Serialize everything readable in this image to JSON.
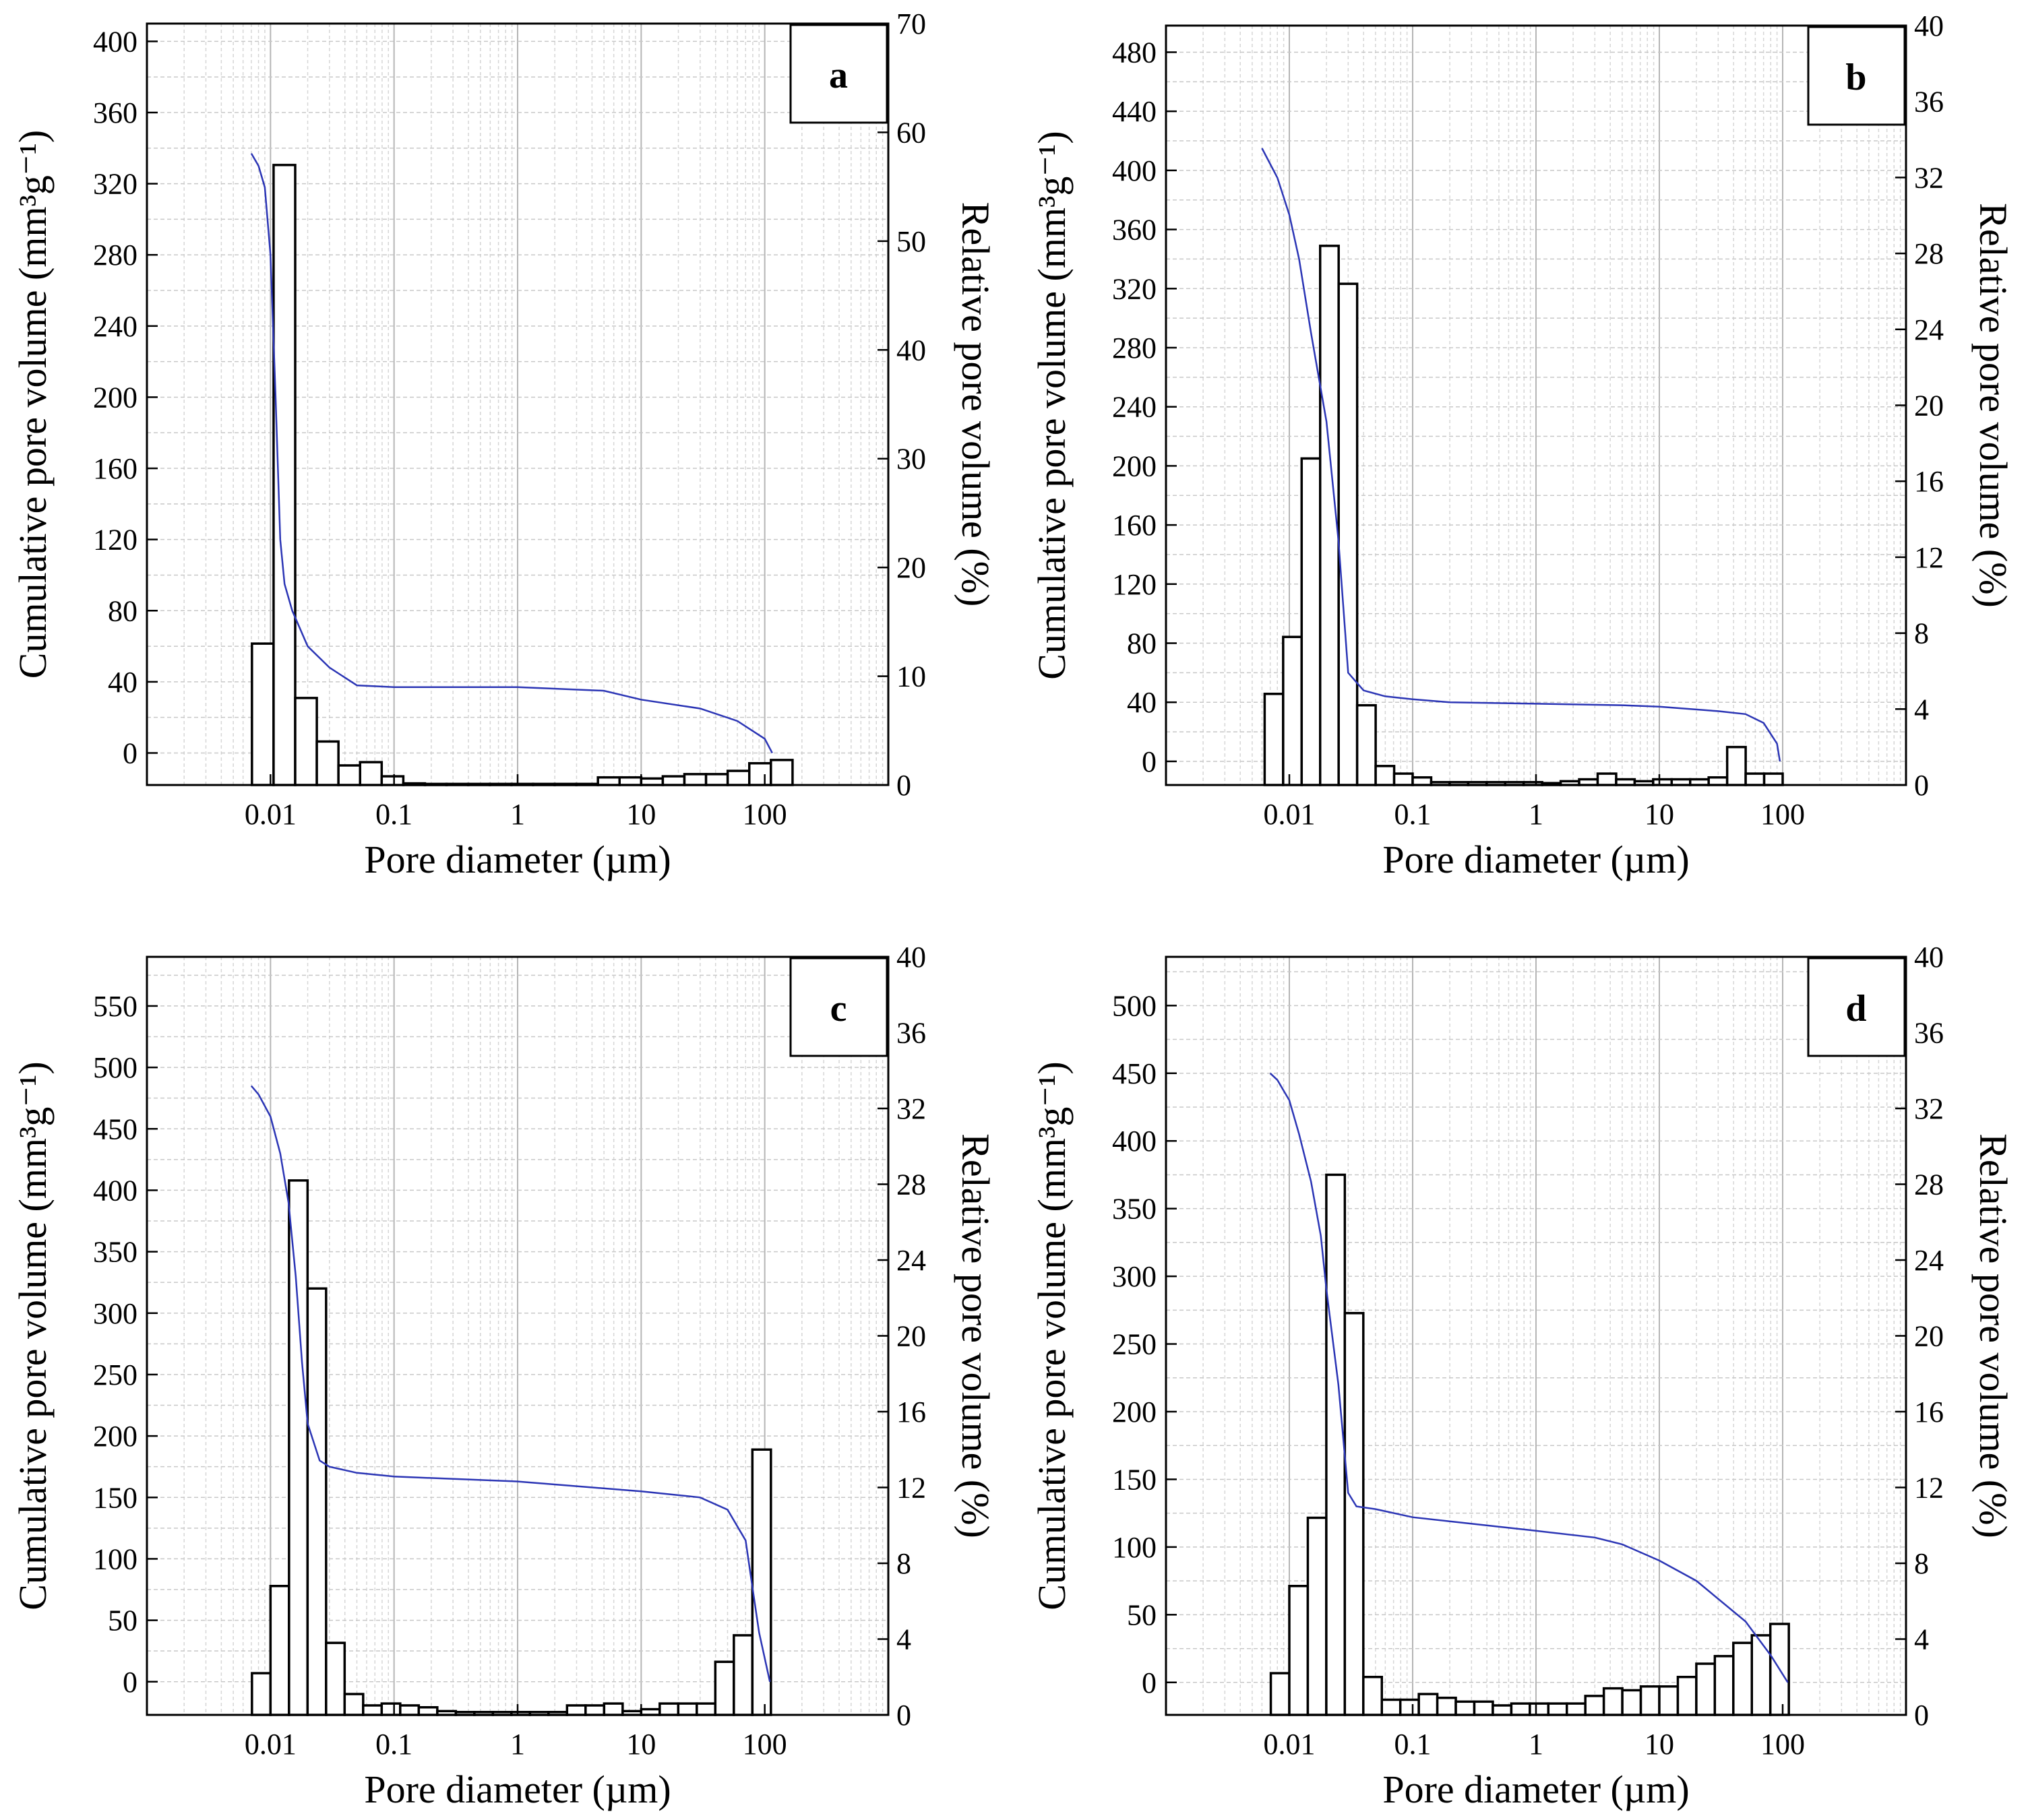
{
  "figure": {
    "panels": [
      "a",
      "b",
      "c",
      "d"
    ]
  },
  "chart_data": [
    {
      "type": "bar",
      "panel": "a",
      "xlabel": "Pore diameter (µm)",
      "ylabel": "Cumulative pore volume (mm³g⁻¹)",
      "y2label": "Relative pore volume (%)",
      "x_scale": "log",
      "xlim": [
        0.001,
        1000
      ],
      "xticks": [
        0.01,
        0.1,
        1,
        10,
        100
      ],
      "xtick_labels": [
        "0.01",
        "0.1",
        "1",
        "10",
        "100"
      ],
      "ylim": [
        -18,
        410
      ],
      "yticks": [
        0,
        40,
        80,
        120,
        160,
        200,
        240,
        280,
        320,
        360,
        400
      ],
      "y2lim": [
        0,
        70
      ],
      "y2ticks": [
        0,
        10,
        20,
        30,
        40,
        50,
        60,
        70
      ],
      "grid": true,
      "bins_log10": [
        -2.15,
        -1.975,
        -1.8,
        -1.625,
        -1.45,
        -1.275,
        -1.1,
        -0.925,
        -0.75,
        -0.575,
        -0.4,
        -0.225,
        -0.05,
        0.125,
        0.3,
        0.475,
        0.65,
        0.825,
        1.0,
        1.175,
        1.35,
        1.525,
        1.7,
        1.875,
        2.05
      ],
      "relative_pore_volume": [
        13.0,
        57.0,
        8.0,
        4.0,
        1.8,
        2.1,
        0.8,
        0.15,
        0.1,
        0.1,
        0.1,
        0.1,
        0.1,
        0.1,
        0.1,
        0.1,
        0.7,
        0.7,
        0.6,
        0.8,
        1.0,
        1.0,
        1.3,
        2.0,
        2.3
      ],
      "cumulative_curve": {
        "x": [
          0.007,
          0.008,
          0.009,
          0.01,
          0.011,
          0.012,
          0.013,
          0.015,
          0.02,
          0.03,
          0.05,
          0.1,
          1,
          5,
          10,
          30,
          60,
          100,
          115
        ],
        "y": [
          337,
          330,
          318,
          280,
          200,
          120,
          95,
          80,
          60,
          48,
          38,
          37,
          37,
          35,
          30,
          25,
          18,
          8,
          0
        ]
      }
    },
    {
      "type": "bar",
      "panel": "b",
      "xlabel": "Pore diameter (µm)",
      "ylabel": "Cumulative pore volume (mm³g⁻¹)",
      "y2label": "Relative pore volume (%)",
      "x_scale": "log",
      "xlim": [
        0.001,
        1000
      ],
      "xticks": [
        0.01,
        0.1,
        1,
        10,
        100
      ],
      "xtick_labels": [
        "0.01",
        "0.1",
        "1",
        "10",
        "100"
      ],
      "ylim": [
        -16,
        498
      ],
      "yticks": [
        0,
        40,
        80,
        120,
        160,
        200,
        240,
        280,
        320,
        360,
        400,
        440,
        480
      ],
      "y2lim": [
        0,
        40
      ],
      "y2ticks": [
        0,
        4,
        8,
        12,
        16,
        20,
        24,
        28,
        32,
        36,
        40
      ],
      "grid": true,
      "bins_log10": [
        -2.2,
        -2.05,
        -1.9,
        -1.75,
        -1.6,
        -1.45,
        -1.3,
        -1.15,
        -1.0,
        -0.85,
        -0.7,
        -0.55,
        -0.4,
        -0.25,
        -0.1,
        0.05,
        0.2,
        0.35,
        0.5,
        0.65,
        0.8,
        0.95,
        1.1,
        1.25,
        1.4,
        1.55,
        1.7,
        1.85
      ],
      "relative_pore_volume": [
        4.8,
        7.8,
        17.2,
        28.4,
        26.4,
        4.2,
        1.0,
        0.6,
        0.4,
        0.15,
        0.15,
        0.15,
        0.15,
        0.15,
        0.15,
        0.1,
        0.2,
        0.3,
        0.6,
        0.3,
        0.2,
        0.3,
        0.3,
        0.3,
        0.4,
        2.0,
        0.6,
        0.6
      ],
      "cumulative_curve": {
        "x": [
          0.006,
          0.008,
          0.01,
          0.012,
          0.015,
          0.02,
          0.025,
          0.03,
          0.04,
          0.06,
          0.1,
          0.2,
          1,
          5,
          10,
          30,
          50,
          70,
          90,
          95
        ],
        "y": [
          415,
          395,
          370,
          340,
          290,
          230,
          150,
          60,
          48,
          44,
          42,
          40,
          39,
          38,
          37,
          34,
          32,
          26,
          12,
          0
        ]
      }
    },
    {
      "type": "bar",
      "panel": "c",
      "xlabel": "Pore diameter (µm)",
      "ylabel": "Cumulative pore volume (mm³g⁻¹)",
      "y2label": "Relative pore volume (%)",
      "x_scale": "log",
      "xlim": [
        0.001,
        1000
      ],
      "xticks": [
        0.01,
        0.1,
        1,
        10,
        100
      ],
      "xtick_labels": [
        "0.01",
        "0.1",
        "1",
        "10",
        "100"
      ],
      "ylim": [
        -27,
        590
      ],
      "yticks": [
        0,
        50,
        100,
        150,
        200,
        250,
        300,
        350,
        400,
        450,
        500,
        550
      ],
      "y2lim": [
        0,
        40
      ],
      "y2ticks": [
        0,
        4,
        8,
        12,
        16,
        20,
        24,
        28,
        32,
        36,
        40
      ],
      "grid": true,
      "bins_log10": [
        -2.15,
        -2.0,
        -1.85,
        -1.7,
        -1.55,
        -1.4,
        -1.25,
        -1.1,
        -0.95,
        -0.8,
        -0.65,
        -0.5,
        -0.35,
        -0.2,
        -0.05,
        0.1,
        0.25,
        0.4,
        0.55,
        0.7,
        0.85,
        1.0,
        1.15,
        1.3,
        1.45,
        1.6,
        1.75,
        1.9
      ],
      "relative_pore_volume": [
        2.2,
        6.8,
        28.2,
        22.5,
        3.8,
        1.1,
        0.5,
        0.6,
        0.5,
        0.4,
        0.2,
        0.15,
        0.15,
        0.15,
        0.15,
        0.15,
        0.15,
        0.5,
        0.5,
        0.6,
        0.2,
        0.3,
        0.6,
        0.6,
        0.6,
        2.8,
        4.2,
        14.0
      ],
      "cumulative_curve": {
        "x": [
          0.007,
          0.008,
          0.01,
          0.012,
          0.014,
          0.016,
          0.018,
          0.02,
          0.025,
          0.03,
          0.05,
          0.1,
          1,
          10,
          30,
          50,
          70,
          80,
          90,
          110
        ],
        "y": [
          485,
          478,
          460,
          430,
          390,
          330,
          260,
          210,
          180,
          175,
          170,
          167,
          163,
          155,
          150,
          140,
          115,
          75,
          40,
          0
        ]
      }
    },
    {
      "type": "bar",
      "panel": "d",
      "xlabel": "Pore diameter (µm)",
      "ylabel": "Cumulative pore volume (mm³g⁻¹)",
      "y2label": "Relative pore volume (%)",
      "x_scale": "log",
      "xlim": [
        0.001,
        1000
      ],
      "xticks": [
        0.01,
        0.1,
        1,
        10,
        100
      ],
      "xtick_labels": [
        "0.01",
        "0.1",
        "1",
        "10",
        "100"
      ],
      "ylim": [
        -24,
        536
      ],
      "yticks": [
        0,
        50,
        100,
        150,
        200,
        250,
        300,
        350,
        400,
        450,
        500
      ],
      "y2lim": [
        0,
        40
      ],
      "y2ticks": [
        0,
        4,
        8,
        12,
        16,
        20,
        24,
        28,
        32,
        36,
        40
      ],
      "grid": true,
      "bins_log10": [
        -2.15,
        -2.0,
        -1.85,
        -1.7,
        -1.55,
        -1.4,
        -1.25,
        -1.1,
        -0.95,
        -0.8,
        -0.65,
        -0.5,
        -0.35,
        -0.2,
        -0.05,
        0.1,
        0.25,
        0.4,
        0.55,
        0.7,
        0.85,
        1.0,
        1.15,
        1.3,
        1.45,
        1.6,
        1.75,
        1.9
      ],
      "relative_pore_volume": [
        2.2,
        6.8,
        10.4,
        28.5,
        21.2,
        2.0,
        0.8,
        0.8,
        1.1,
        0.9,
        0.7,
        0.7,
        0.5,
        0.6,
        0.6,
        0.6,
        0.6,
        1.0,
        1.4,
        1.3,
        1.5,
        1.5,
        2.0,
        2.7,
        3.1,
        3.8,
        4.2,
        4.8
      ],
      "cumulative_curve": {
        "x": [
          0.007,
          0.008,
          0.01,
          0.012,
          0.015,
          0.018,
          0.02,
          0.025,
          0.03,
          0.035,
          0.05,
          0.1,
          0.5,
          1,
          3,
          5,
          10,
          20,
          50,
          80,
          110
        ],
        "y": [
          450,
          445,
          430,
          405,
          370,
          330,
          290,
          220,
          140,
          130,
          128,
          122,
          115,
          112,
          107,
          102,
          90,
          75,
          45,
          20,
          0
        ]
      }
    }
  ]
}
